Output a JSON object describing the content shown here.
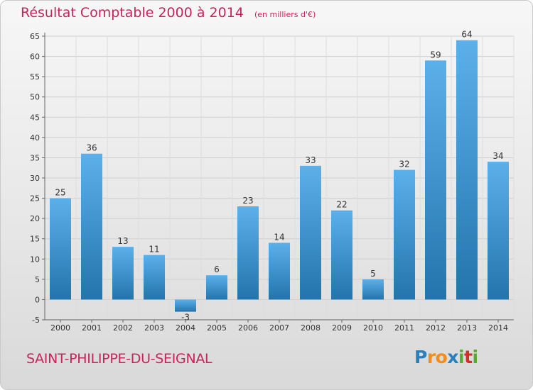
{
  "header": {
    "title": "Résultat Comptable 2000 à 2014",
    "subtitle": "(en milliers d'€)"
  },
  "footer": {
    "commune": "SAINT-PHILIPPE-DU-SEIGNAL",
    "logo_letters": [
      "P",
      "r",
      "o",
      "x",
      "i",
      "t",
      "i"
    ],
    "logo_colors": [
      "#2a7fc1",
      "#f28c1e",
      "#f28c1e",
      "#2a7fc1",
      "#5aa832",
      "#d12e2e",
      "#5aa832"
    ]
  },
  "colors": {
    "bar_light": "#5cb0ea",
    "bar_dark": "#2374ad",
    "title": "#c8245a"
  },
  "chart_data": {
    "type": "bar",
    "title": "Résultat Comptable 2000 à 2014",
    "subtitle": "(en milliers d'€)",
    "categories": [
      "2000",
      "2001",
      "2002",
      "2003",
      "2004",
      "2005",
      "2006",
      "2007",
      "2008",
      "2009",
      "2010",
      "2011",
      "2012",
      "2013",
      "2014"
    ],
    "values": [
      25,
      36,
      13,
      11,
      -3,
      6,
      23,
      14,
      33,
      22,
      5,
      32,
      59,
      64,
      34
    ],
    "ylim": [
      -5,
      65
    ],
    "yticks": [
      -5,
      0,
      5,
      10,
      15,
      20,
      25,
      30,
      35,
      40,
      45,
      50,
      55,
      60,
      65
    ],
    "grid": true
  }
}
